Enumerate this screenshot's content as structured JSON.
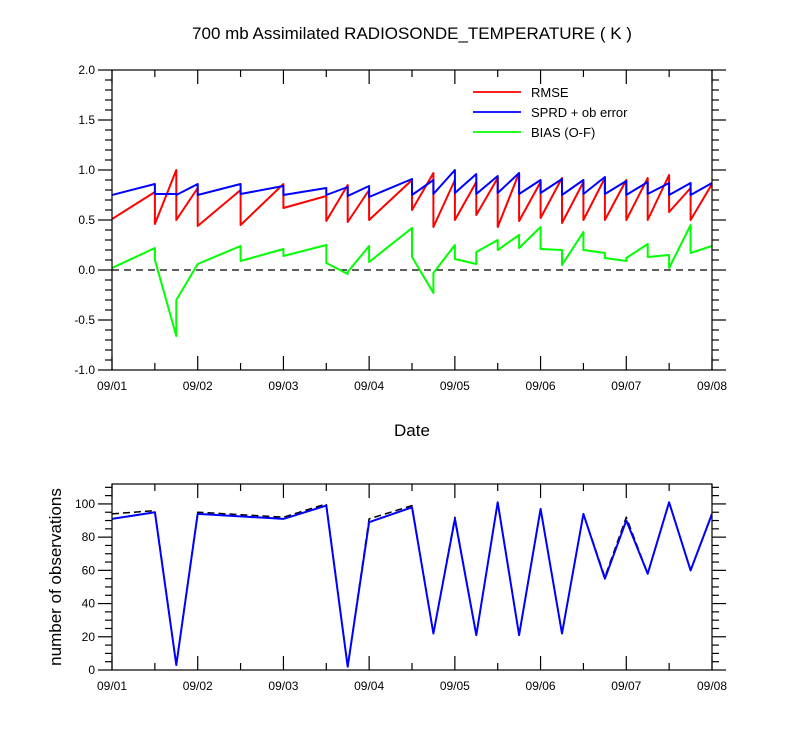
{
  "chart_data": [
    {
      "type": "line",
      "title": "700 mb Assimilated RADIOSONDE_TEMPERATURE ( K )",
      "xlabel": "Date",
      "ylabel": "",
      "x_tick_labels": [
        "09/01",
        "09/02",
        "09/03",
        "09/04",
        "09/05",
        "09/06",
        "09/07",
        "09/08"
      ],
      "x_tick_days": [
        0,
        1,
        2,
        3,
        4,
        5,
        6,
        7
      ],
      "xlim_days": [
        0,
        7
      ],
      "ylim": [
        -1.0,
        2.0
      ],
      "y_ticks": [
        -1.0,
        -0.5,
        0.0,
        0.5,
        1.0,
        1.5,
        2.0
      ],
      "y_tick_labels": [
        "-1.0",
        "-0.5",
        "0.0",
        "0.5",
        "1.0",
        "1.5",
        "2.0"
      ],
      "zero_line": "dashed",
      "legend_position": "top-right",
      "series": [
        {
          "name": "RMSE",
          "color": "#ff0000",
          "x": [
            0,
            0.5,
            0.5,
            0.75,
            0.75,
            1.0,
            1.0,
            1.5,
            1.5,
            2.0,
            2.0,
            2.5,
            2.5,
            2.75,
            2.75,
            3.0,
            3.0,
            3.5,
            3.5,
            3.75,
            3.75,
            4.0,
            4.0,
            4.25,
            4.25,
            4.5,
            4.5,
            4.75,
            4.75,
            5.0,
            5.0,
            5.25,
            5.25,
            5.5,
            5.5,
            5.75,
            5.75,
            6.0,
            6.0,
            6.25,
            6.25,
            6.5,
            6.5,
            6.75,
            6.75,
            7.0
          ],
          "y": [
            0.51,
            0.78,
            0.46,
            1.0,
            0.5,
            0.82,
            0.44,
            0.8,
            0.45,
            0.86,
            0.62,
            0.74,
            0.49,
            0.85,
            0.48,
            0.8,
            0.5,
            0.9,
            0.6,
            0.97,
            0.43,
            0.9,
            0.5,
            0.88,
            0.55,
            0.92,
            0.43,
            0.97,
            0.49,
            0.88,
            0.52,
            0.92,
            0.47,
            0.88,
            0.5,
            0.92,
            0.5,
            0.9,
            0.5,
            0.92,
            0.5,
            0.95,
            0.58,
            0.82,
            0.5,
            0.86
          ]
        },
        {
          "name": "SPRD + ob error",
          "color": "#0000ff",
          "x": [
            0,
            0.5,
            0.5,
            0.75,
            0.75,
            1.0,
            1.0,
            1.5,
            1.5,
            2.0,
            2.0,
            2.5,
            2.5,
            2.75,
            2.75,
            3.0,
            3.0,
            3.5,
            3.5,
            3.75,
            3.75,
            4.0,
            4.0,
            4.25,
            4.25,
            4.5,
            4.5,
            4.75,
            4.75,
            5.0,
            5.0,
            5.25,
            5.25,
            5.5,
            5.5,
            5.75,
            5.75,
            6.0,
            6.0,
            6.25,
            6.25,
            6.5,
            6.5,
            6.75,
            6.75,
            7.0
          ],
          "y": [
            0.75,
            0.86,
            0.76,
            0.76,
            0.75,
            0.86,
            0.75,
            0.86,
            0.76,
            0.84,
            0.75,
            0.82,
            0.75,
            0.83,
            0.74,
            0.84,
            0.73,
            0.91,
            0.75,
            0.9,
            0.76,
            1.0,
            0.77,
            0.96,
            0.76,
            0.94,
            0.77,
            0.97,
            0.76,
            0.9,
            0.77,
            0.91,
            0.75,
            0.9,
            0.76,
            0.93,
            0.76,
            0.89,
            0.75,
            0.88,
            0.76,
            0.87,
            0.75,
            0.87,
            0.75,
            0.87
          ]
        },
        {
          "name": "BIAS (O-F)",
          "color": "#00ff00",
          "x": [
            0,
            0.5,
            0.5,
            0.75,
            0.75,
            1.0,
            1.0,
            1.5,
            1.5,
            2.0,
            2.0,
            2.5,
            2.5,
            2.75,
            2.75,
            3.0,
            3.0,
            3.5,
            3.5,
            3.75,
            3.75,
            4.0,
            4.0,
            4.25,
            4.25,
            4.5,
            4.5,
            4.75,
            4.75,
            5.0,
            5.0,
            5.25,
            5.25,
            5.5,
            5.5,
            5.75,
            5.75,
            6.0,
            6.0,
            6.25,
            6.25,
            6.5,
            6.5,
            6.75,
            6.75,
            7.0
          ],
          "y": [
            0.02,
            0.22,
            0.1,
            -0.66,
            -0.3,
            0.06,
            0.06,
            0.24,
            0.09,
            0.21,
            0.14,
            0.25,
            0.07,
            -0.04,
            -0.02,
            0.24,
            0.08,
            0.42,
            0.13,
            -0.23,
            -0.03,
            0.25,
            0.11,
            0.06,
            0.18,
            0.3,
            0.2,
            0.35,
            0.22,
            0.43,
            0.21,
            0.2,
            0.05,
            0.38,
            0.2,
            0.17,
            0.12,
            0.09,
            0.12,
            0.26,
            0.13,
            0.15,
            0.02,
            0.45,
            0.17,
            0.24
          ]
        }
      ]
    },
    {
      "type": "line",
      "title": "",
      "xlabel": "",
      "ylabel": "number of observations",
      "x_tick_labels": [
        "09/01",
        "09/02",
        "09/03",
        "09/04",
        "09/05",
        "09/06",
        "09/07",
        "09/08"
      ],
      "x_tick_days": [
        0,
        1,
        2,
        3,
        4,
        5,
        6,
        7
      ],
      "xlim_days": [
        0,
        7
      ],
      "ylim": [
        0,
        112
      ],
      "y_ticks": [
        0,
        20,
        40,
        60,
        80,
        100
      ],
      "y_tick_labels": [
        "0",
        "20",
        "40",
        "60",
        "80",
        "100"
      ],
      "series": [
        {
          "style": "dashed",
          "color": "#000000",
          "x": [
            0,
            0.5,
            0.75,
            1.0,
            2.0,
            2.5,
            2.75,
            3.0,
            3.5,
            3.75,
            4.0,
            4.25,
            4.5,
            4.75,
            5.0,
            5.25,
            5.5,
            5.75,
            6.0,
            6.25,
            6.5,
            6.75,
            7.0
          ],
          "y": [
            94,
            96,
            3,
            95,
            92,
            100,
            2,
            91,
            99,
            22,
            92,
            21,
            101,
            21,
            97,
            22,
            94,
            56,
            92,
            58,
            101,
            60,
            94
          ]
        },
        {
          "style": "solid",
          "color": "#0000ff",
          "x": [
            0,
            0.5,
            0.75,
            1.0,
            2.0,
            2.5,
            2.75,
            3.0,
            3.5,
            3.75,
            4.0,
            4.25,
            4.5,
            4.75,
            5.0,
            5.25,
            5.5,
            5.75,
            6.0,
            6.25,
            6.5,
            6.75,
            7.0
          ],
          "y": [
            91,
            95,
            3,
            94,
            91,
            99,
            2,
            89,
            98,
            22,
            91,
            21,
            101,
            21,
            97,
            22,
            94,
            55,
            90,
            58,
            101,
            60,
            94
          ]
        }
      ]
    }
  ]
}
